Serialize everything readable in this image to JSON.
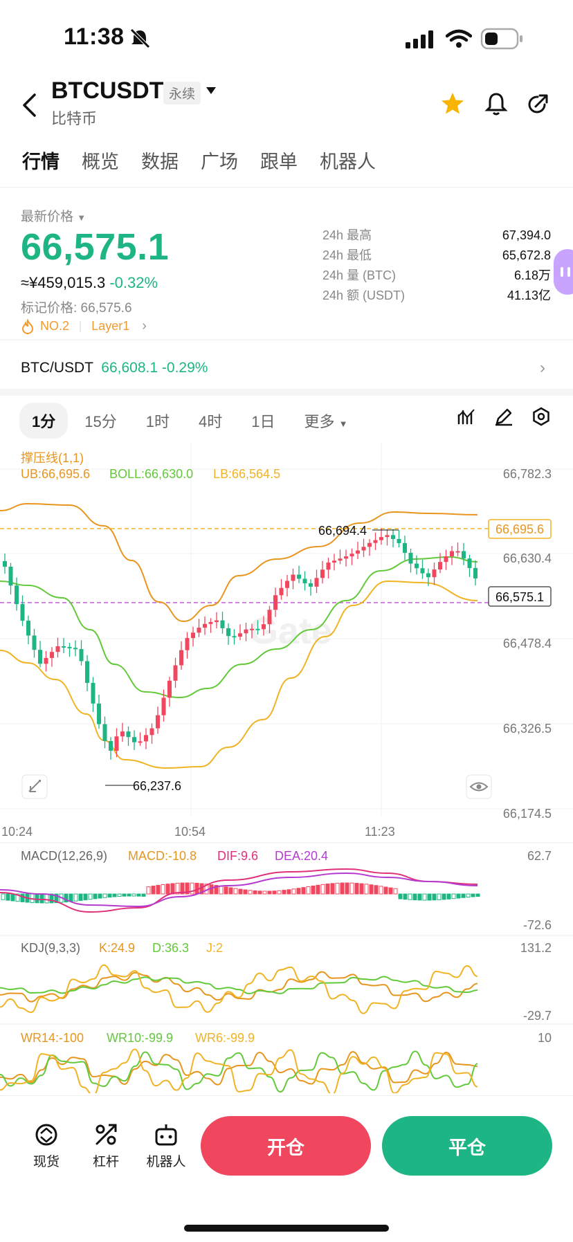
{
  "status_bar": {
    "time": "11:38"
  },
  "header": {
    "symbol": "BTCUSDT",
    "contract_tag": "永续",
    "subtitle": "比特币"
  },
  "tabs": [
    "行情",
    "概览",
    "数据",
    "广场",
    "跟单",
    "机器人"
  ],
  "price": {
    "label": "最新价格",
    "last": "66,575.1",
    "cny": "≈¥459,015.3",
    "change": "-0.32%",
    "mark_label": "标记价格: 66,575.6",
    "rank": "NO.2",
    "category": "Layer1"
  },
  "stats": [
    {
      "k": "24h  最高",
      "v": "67,394.0"
    },
    {
      "k": "24h  最低",
      "v": "65,672.8"
    },
    {
      "k": "24h  量 (BTC)",
      "v": "6.18万"
    },
    {
      "k": "24h  额 (USDT)",
      "v": "41.13亿"
    }
  ],
  "spot_pair": {
    "name": "BTC/USDT",
    "price": "66,608.1",
    "change": "-0.29%"
  },
  "timeframes": [
    "1分",
    "15分",
    "1时",
    "4时",
    "1日",
    "更多"
  ],
  "chart": {
    "indicator_title": "撑压线(1,1)",
    "ub": "UB:66,695.6",
    "boll": "BOLL:66,630.0",
    "lb": "LB:66,564.5",
    "y_ticks": [
      "66,782.3",
      "66,630.4",
      "66,478.4",
      "66,326.5",
      "66,174.5"
    ],
    "ub_tag": "66,695.6",
    "last_tag": "66,575.1",
    "high_marker": "66,694.4",
    "low_marker": "66,237.6",
    "x_ticks": [
      "10:24",
      "10:54",
      "11:23"
    ],
    "macd_title": "MACD(12,26,9)",
    "macd": "MACD:-10.8",
    "dif": "DIF:9.6",
    "dea": "DEA:20.4",
    "macd_max": "62.7",
    "macd_min": "-72.6",
    "kdj_title": "KDJ(9,3,3)",
    "k": "K:24.9",
    "d": "D:36.3",
    "j": "J:2",
    "kdj_max": "131.2",
    "kdj_min": "-29.7",
    "wr14": "WR14:-100",
    "wr10": "WR10:-99.9",
    "wr6": "WR6:-99.9",
    "wr_max": "10",
    "watermark": "Gate"
  },
  "bottom": {
    "spot": "现货",
    "leverage": "杠杆",
    "bot": "机器人",
    "open": "开仓",
    "close": "平仓"
  },
  "colors": {
    "up": "#f0475e",
    "down": "#1db584",
    "ub": "#e8951e",
    "boll": "#62c93a",
    "lb": "#f0b323"
  }
}
